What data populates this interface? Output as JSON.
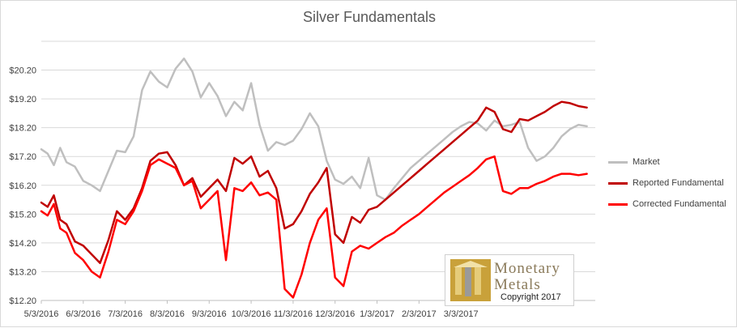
{
  "chart_data": {
    "type": "line",
    "title": "Silver Fundamentals",
    "xlabel": "",
    "ylabel": "",
    "x_ticks": [
      "5/3/2016",
      "6/3/2016",
      "7/3/2016",
      "8/3/2016",
      "9/3/2016",
      "10/3/2016",
      "11/3/2016",
      "12/3/2016",
      "1/3/2017",
      "2/3/2017",
      "3/3/2017"
    ],
    "y_ticks": [
      "$12.20",
      "$13.20",
      "$14.20",
      "$15.20",
      "$16.20",
      "$17.20",
      "$18.20",
      "$19.20",
      "$20.20"
    ],
    "ylim": [
      12.2,
      21.2
    ],
    "xlim": [
      0,
      13.2
    ],
    "grid": true,
    "legend_position": "right",
    "series": [
      {
        "name": "Market",
        "color": "#bfbfbf",
        "x": [
          0,
          0.15,
          0.3,
          0.45,
          0.6,
          0.8,
          1.0,
          1.2,
          1.4,
          1.6,
          1.8,
          2.0,
          2.2,
          2.4,
          2.6,
          2.8,
          3.0,
          3.2,
          3.4,
          3.6,
          3.8,
          4.0,
          4.2,
          4.4,
          4.6,
          4.8,
          5.0,
          5.2,
          5.4,
          5.6,
          5.8,
          6.0,
          6.2,
          6.4,
          6.6,
          6.8,
          7.0,
          7.2,
          7.4,
          7.6,
          7.8,
          8.0,
          8.2,
          8.4,
          8.6,
          8.8,
          9.0,
          9.2,
          9.4,
          9.6,
          9.8,
          10.0,
          10.2,
          10.4,
          10.6,
          10.8,
          11.0,
          11.2,
          11.4,
          11.6,
          11.8,
          12.0,
          12.2,
          12.4,
          12.6,
          12.8,
          13.0
        ],
        "values": [
          17.45,
          17.3,
          16.9,
          17.5,
          17.0,
          16.85,
          16.35,
          16.2,
          16.0,
          16.7,
          17.4,
          17.35,
          17.9,
          19.5,
          20.15,
          19.8,
          19.6,
          20.25,
          20.6,
          20.15,
          19.25,
          19.75,
          19.3,
          18.6,
          19.1,
          18.8,
          19.75,
          18.3,
          17.4,
          17.7,
          17.6,
          17.75,
          18.15,
          18.7,
          18.25,
          17.05,
          16.4,
          16.25,
          16.5,
          16.1,
          17.15,
          15.85,
          15.7,
          16.1,
          16.45,
          16.8,
          17.05,
          17.3,
          17.55,
          17.8,
          18.05,
          18.25,
          18.4,
          18.35,
          18.1,
          18.45,
          18.25,
          18.3,
          18.4,
          17.5,
          17.05,
          17.2,
          17.5,
          17.9,
          18.15,
          18.3,
          18.25
        ]
      },
      {
        "name": "Reported Fundamental",
        "color": "#c00000",
        "x": [
          0,
          0.15,
          0.3,
          0.45,
          0.6,
          0.8,
          1.0,
          1.2,
          1.4,
          1.6,
          1.8,
          2.0,
          2.2,
          2.4,
          2.6,
          2.8,
          3.0,
          3.2,
          3.4,
          3.6,
          3.8,
          4.0,
          4.2,
          4.4,
          4.6,
          4.8,
          5.0,
          5.2,
          5.4,
          5.6,
          5.8,
          6.0,
          6.2,
          6.4,
          6.6,
          6.8,
          7.0,
          7.2,
          7.4,
          7.6,
          7.8,
          8.0,
          8.2,
          8.4,
          8.6,
          8.8,
          9.0,
          9.2,
          9.4,
          9.6,
          9.8,
          10.0,
          10.2,
          10.4,
          10.6,
          10.8,
          11.0,
          11.2,
          11.4,
          11.6,
          11.8,
          12.0,
          12.2,
          12.4,
          12.6,
          12.8,
          13.0
        ],
        "values": [
          15.6,
          15.45,
          15.85,
          15.0,
          14.85,
          14.25,
          14.1,
          13.8,
          13.5,
          14.3,
          15.3,
          15.0,
          15.4,
          16.1,
          17.05,
          17.3,
          17.35,
          16.9,
          16.2,
          16.45,
          15.8,
          16.1,
          16.4,
          16.0,
          17.15,
          16.95,
          17.2,
          16.5,
          16.7,
          16.1,
          14.7,
          14.85,
          15.3,
          15.9,
          16.3,
          16.8,
          14.5,
          14.2,
          15.1,
          14.9,
          15.35,
          15.45,
          15.7,
          15.95,
          16.2,
          16.45,
          16.7,
          16.95,
          17.2,
          17.45,
          17.7,
          17.95,
          18.2,
          18.45,
          18.9,
          18.75,
          18.15,
          18.05,
          18.5,
          18.45,
          18.6,
          18.75,
          18.95,
          19.1,
          19.05,
          18.95,
          18.9
        ]
      },
      {
        "name": "Corrected Fundamental",
        "color": "#ff0000",
        "x": [
          0,
          0.15,
          0.3,
          0.45,
          0.6,
          0.8,
          1.0,
          1.2,
          1.4,
          1.6,
          1.8,
          2.0,
          2.2,
          2.4,
          2.6,
          2.8,
          3.0,
          3.2,
          3.4,
          3.6,
          3.8,
          4.0,
          4.2,
          4.4,
          4.6,
          4.8,
          5.0,
          5.2,
          5.4,
          5.6,
          5.8,
          6.0,
          6.2,
          6.4,
          6.6,
          6.8,
          7.0,
          7.2,
          7.4,
          7.6,
          7.8,
          8.0,
          8.2,
          8.4,
          8.6,
          8.8,
          9.0,
          9.2,
          9.4,
          9.6,
          9.8,
          10.0,
          10.2,
          10.4,
          10.6,
          10.8,
          11.0,
          11.2,
          11.4,
          11.6,
          11.8,
          12.0,
          12.2,
          12.4,
          12.6,
          12.8,
          13.0
        ],
        "values": [
          15.3,
          15.15,
          15.55,
          14.7,
          14.55,
          13.85,
          13.6,
          13.2,
          13.0,
          13.9,
          15.0,
          14.85,
          15.3,
          16.0,
          16.9,
          17.1,
          16.95,
          16.8,
          16.2,
          16.35,
          15.4,
          15.7,
          16.0,
          13.6,
          16.1,
          16.0,
          16.3,
          15.85,
          15.95,
          15.7,
          12.6,
          12.3,
          13.1,
          14.2,
          15.0,
          15.4,
          13.0,
          12.7,
          13.9,
          14.1,
          14.0,
          14.2,
          14.4,
          14.55,
          14.8,
          15.0,
          15.2,
          15.45,
          15.7,
          15.95,
          16.15,
          16.35,
          16.55,
          16.8,
          17.1,
          17.2,
          16.0,
          15.9,
          16.1,
          16.1,
          16.25,
          16.35,
          16.5,
          16.6,
          16.6,
          16.55,
          16.6
        ]
      }
    ]
  },
  "logo": {
    "line1": "Monetary",
    "line2": "Metals",
    "copyright": "Copyright 2017"
  },
  "colors": {
    "grid": "#d9d9d9",
    "axis": "#bfbfbf",
    "logo_gold": "#c9a13a",
    "logo_grey": "#9a9a9a"
  }
}
